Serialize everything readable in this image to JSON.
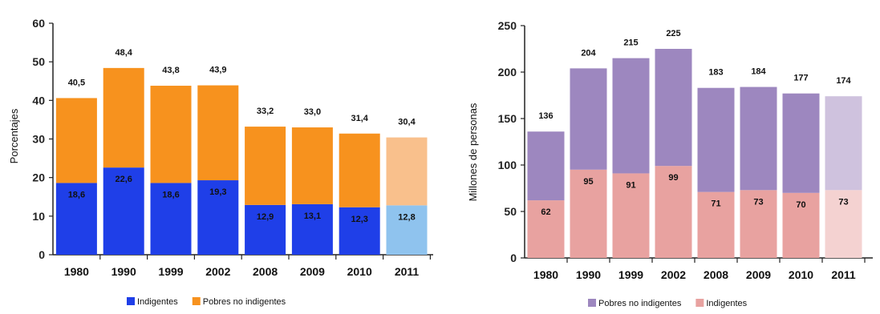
{
  "chart_data": [
    {
      "type": "bar",
      "stacked": true,
      "title": "",
      "xlabel": "",
      "ylabel": "Porcentajes",
      "ylim": [
        0,
        60
      ],
      "yticks": [
        0,
        10,
        20,
        30,
        40,
        50,
        60
      ],
      "categories": [
        "1980",
        "1990",
        "1999",
        "2002",
        "2008",
        "2009",
        "2010",
        "2011"
      ],
      "series": [
        {
          "name": "Indigentes",
          "values": [
            18.6,
            22.6,
            18.6,
            19.3,
            12.9,
            13.1,
            12.3,
            12.8
          ],
          "labels": [
            "18,6",
            "22,6",
            "18,6",
            "19,3",
            "12,9",
            "13,1",
            "12,3",
            "12,8"
          ],
          "color": "#1f3fe8",
          "highlight_color": "#8fc3ee"
        },
        {
          "name": "Pobres no indigentes",
          "values": [
            22.0,
            25.8,
            25.2,
            24.6,
            20.3,
            19.9,
            19.1,
            17.6
          ],
          "color": "#f7921e",
          "highlight_color": "#f9c08c"
        }
      ],
      "totals": [
        40.5,
        48.4,
        43.8,
        43.9,
        33.2,
        33.0,
        31.4,
        30.4
      ],
      "total_labels": [
        "40,5",
        "48,4",
        "43,8",
        "43,9",
        "33,2",
        "33,0",
        "31,4",
        "30,4"
      ],
      "highlight_index": 7,
      "legend_position": "bottom",
      "legend": [
        "Indigentes",
        "Pobres no indigentes"
      ]
    },
    {
      "type": "bar",
      "stacked": true,
      "title": "",
      "xlabel": "",
      "ylabel": "Millones de personas",
      "ylim": [
        0,
        250
      ],
      "yticks": [
        0,
        50,
        100,
        150,
        200,
        250
      ],
      "categories": [
        "1980",
        "1990",
        "1999",
        "2002",
        "2008",
        "2009",
        "2010",
        "2011"
      ],
      "series": [
        {
          "name": "Indigentes",
          "values": [
            62,
            95,
            91,
            99,
            71,
            73,
            70,
            73
          ],
          "labels": [
            "62",
            "95",
            "91",
            "99",
            "71",
            "73",
            "70",
            "73"
          ],
          "color": "#e8a2a0",
          "highlight_color": "#f4d2d1"
        },
        {
          "name": "Pobres no indigentes",
          "values": [
            74,
            109,
            124,
            126,
            112,
            111,
            107,
            101
          ],
          "color": "#9d87bf",
          "highlight_color": "#cfc2de"
        }
      ],
      "totals": [
        136,
        204,
        215,
        225,
        183,
        184,
        177,
        174
      ],
      "total_labels": [
        "136",
        "204",
        "215",
        "225",
        "183",
        "184",
        "177",
        "174"
      ],
      "highlight_index": 7,
      "legend_position": "bottom",
      "legend": [
        "Pobres no indigentes",
        "Indigentes"
      ]
    }
  ]
}
